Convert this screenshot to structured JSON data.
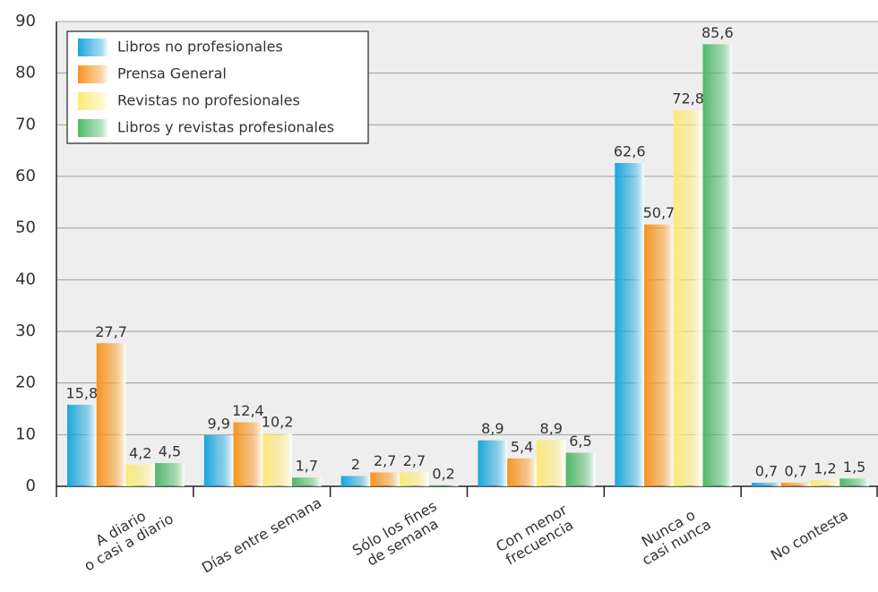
{
  "chart_data": {
    "type": "bar",
    "categories": [
      [
        "A diario",
        "o casi a diario"
      ],
      [
        "Días entre semana"
      ],
      [
        "Sólo los fines",
        "de semana"
      ],
      [
        "Con menor",
        "frecuencia"
      ],
      [
        "Nunca o",
        "casi nunca"
      ],
      [
        "No contesta"
      ]
    ],
    "series": [
      {
        "name": "Libros no profesionales",
        "color": "#1aa6dc",
        "values": [
          15.8,
          9.9,
          2,
          8.9,
          62.6,
          0.7
        ],
        "value_labels": [
          "15,8",
          "9,9",
          "2",
          "8,9",
          "62,6",
          "0,7"
        ]
      },
      {
        "name": "Prensa General",
        "color": "#f7941d",
        "values": [
          27.7,
          12.4,
          2.7,
          5.4,
          50.7,
          0.7
        ],
        "value_labels": [
          "27,7",
          "12,4",
          "2,7",
          "5,4",
          "50,7",
          "0,7"
        ]
      },
      {
        "name": "Revistas no profesionales",
        "color": "#fde97a",
        "values": [
          4.2,
          10.2,
          2.7,
          8.9,
          72.8,
          1.2
        ],
        "value_labels": [
          "4,2",
          "10,2",
          "2,7",
          "8,9",
          "72,8",
          "1,2"
        ]
      },
      {
        "name": "Libros y revistas profesionales",
        "color": "#4fb86a",
        "values": [
          4.5,
          1.7,
          0.2,
          6.5,
          85.6,
          1.5
        ],
        "value_labels": [
          "4,5",
          "1,7",
          "0,2",
          "6,5",
          "85,6",
          "1,5"
        ]
      }
    ],
    "ylim": [
      0,
      90
    ],
    "yticks": [
      0,
      10,
      20,
      30,
      40,
      50,
      60,
      70,
      80,
      90
    ],
    "grid": true,
    "legend": "upper left"
  }
}
